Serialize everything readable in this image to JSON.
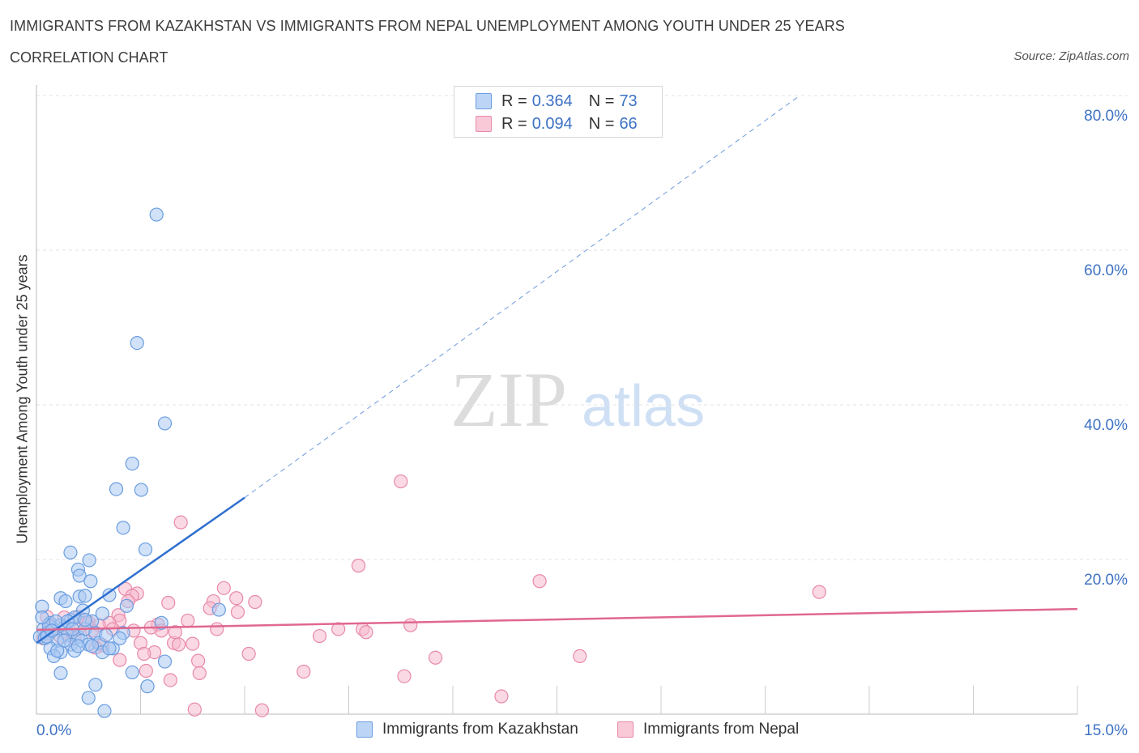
{
  "header": {
    "title": "IMMIGRANTS FROM KAZAKHSTAN VS IMMIGRANTS FROM NEPAL UNEMPLOYMENT AMONG YOUTH UNDER 25 YEARS",
    "subtitle": "CORRELATION CHART",
    "source": "Source: ZipAtlas.com"
  },
  "watermark": {
    "zip": "ZIP",
    "atlas": "atlas"
  },
  "legend": {
    "r_label": "R =",
    "n_label": "N =",
    "kazakhstan": {
      "r": "0.364",
      "n": "73"
    },
    "nepal": {
      "r": "0.094",
      "n": "66"
    }
  },
  "colors": {
    "kazakhstan_fill": "#a9c8f3",
    "kazakhstan_stroke": "#6a9de0",
    "kazakhstan_line": "#2e6fcf",
    "nepal_fill": "#f6b9cd",
    "nepal_stroke": "#e889a8",
    "nepal_line": "#e0688f",
    "axis_label": "#3d72c4",
    "grid": "#e3e3e3"
  },
  "chart_data": {
    "type": "scatter",
    "title": "IMMIGRANTS FROM KAZAKHSTAN VS IMMIGRANTS FROM NEPAL UNEMPLOYMENT AMONG YOUTH UNDER 25 YEARS",
    "xlabel": "",
    "ylabel": "Unemployment Among Youth under 25 years",
    "xlim": [
      0,
      15
    ],
    "ylim": [
      0,
      80
    ],
    "x_tick_labels": [
      "0.0%",
      "15.0%"
    ],
    "y_ticks": [
      20,
      40,
      60,
      80
    ],
    "y_tick_labels": [
      "20.0%",
      "40.0%",
      "60.0%",
      "80.0%"
    ],
    "grid": true,
    "legend": [
      "Immigrants from Kazakhstan",
      "Immigrants from Nepal"
    ],
    "series": [
      {
        "name": "Immigrants from Kazakhstan",
        "points": [
          [
            1.73,
            64.6
          ],
          [
            1.45,
            48.0
          ],
          [
            1.85,
            37.6
          ],
          [
            1.38,
            32.4
          ],
          [
            1.15,
            29.1
          ],
          [
            1.51,
            29.0
          ],
          [
            1.25,
            24.1
          ],
          [
            1.57,
            21.3
          ],
          [
            0.49,
            20.9
          ],
          [
            0.76,
            19.9
          ],
          [
            0.6,
            18.7
          ],
          [
            0.62,
            17.9
          ],
          [
            0.78,
            17.2
          ],
          [
            0.35,
            15.0
          ],
          [
            0.62,
            15.2
          ],
          [
            0.7,
            15.3
          ],
          [
            1.05,
            15.4
          ],
          [
            0.42,
            14.6
          ],
          [
            0.08,
            13.9
          ],
          [
            0.67,
            13.4
          ],
          [
            1.3,
            14.0
          ],
          [
            0.95,
            13.0
          ],
          [
            0.5,
            12.2
          ],
          [
            0.2,
            11.8
          ],
          [
            0.35,
            11.5
          ],
          [
            0.55,
            12.5
          ],
          [
            0.8,
            12.0
          ],
          [
            0.1,
            11.0
          ],
          [
            0.15,
            10.5
          ],
          [
            0.25,
            10.9
          ],
          [
            0.4,
            11.2
          ],
          [
            0.45,
            10.2
          ],
          [
            0.6,
            10.0
          ],
          [
            0.7,
            11.0
          ],
          [
            0.85,
            10.5
          ],
          [
            0.3,
            9.5
          ],
          [
            0.05,
            10.0
          ],
          [
            0.12,
            9.8
          ],
          [
            0.18,
            11.5
          ],
          [
            0.28,
            12.0
          ],
          [
            0.5,
            9.0
          ],
          [
            0.65,
            9.5
          ],
          [
            0.75,
            9.0
          ],
          [
            0.9,
            9.2
          ],
          [
            1.0,
            10.2
          ],
          [
            1.1,
            8.5
          ],
          [
            0.2,
            8.5
          ],
          [
            0.35,
            8.0
          ],
          [
            0.55,
            8.2
          ],
          [
            0.95,
            8.0
          ],
          [
            1.25,
            10.5
          ],
          [
            1.2,
            9.8
          ],
          [
            1.05,
            8.5
          ],
          [
            0.8,
            8.8
          ],
          [
            0.6,
            8.8
          ],
          [
            0.4,
            9.5
          ],
          [
            0.25,
            7.5
          ],
          [
            0.3,
            8.2
          ],
          [
            0.15,
            10.0
          ],
          [
            0.45,
            12.0
          ],
          [
            1.8,
            11.8
          ],
          [
            1.85,
            6.8
          ],
          [
            2.63,
            13.5
          ],
          [
            0.35,
            5.3
          ],
          [
            0.85,
            3.8
          ],
          [
            1.38,
            5.4
          ],
          [
            1.6,
            3.6
          ],
          [
            0.75,
            2.1
          ],
          [
            0.98,
            0.4
          ],
          [
            0.08,
            12.5
          ],
          [
            0.22,
            10.8
          ],
          [
            0.52,
            11.0
          ],
          [
            0.7,
            12.2
          ]
        ]
      },
      {
        "name": "Immigrants from Nepal",
        "points": [
          [
            5.25,
            30.1
          ],
          [
            2.08,
            24.8
          ],
          [
            4.64,
            19.2
          ],
          [
            7.25,
            17.2
          ],
          [
            11.28,
            15.8
          ],
          [
            1.28,
            16.2
          ],
          [
            2.7,
            16.3
          ],
          [
            1.45,
            15.6
          ],
          [
            1.38,
            15.3
          ],
          [
            1.32,
            14.6
          ],
          [
            1.9,
            14.4
          ],
          [
            3.15,
            14.5
          ],
          [
            2.55,
            14.6
          ],
          [
            2.88,
            15.0
          ],
          [
            2.5,
            13.7
          ],
          [
            2.9,
            13.2
          ],
          [
            1.18,
            12.8
          ],
          [
            1.2,
            12.1
          ],
          [
            1.05,
            11.8
          ],
          [
            0.9,
            11.5
          ],
          [
            0.75,
            11.9
          ],
          [
            0.6,
            11.0
          ],
          [
            0.8,
            10.8
          ],
          [
            1.75,
            11.6
          ],
          [
            2.18,
            12.1
          ],
          [
            2.6,
            11.0
          ],
          [
            1.8,
            10.8
          ],
          [
            1.1,
            11.0
          ],
          [
            4.35,
            11.0
          ],
          [
            4.7,
            11.0
          ],
          [
            4.75,
            10.6
          ],
          [
            5.39,
            11.5
          ],
          [
            4.08,
            10.1
          ],
          [
            0.45,
            10.4
          ],
          [
            0.2,
            11.5
          ],
          [
            0.15,
            12.6
          ],
          [
            0.35,
            10.0
          ],
          [
            0.55,
            9.8
          ],
          [
            1.5,
            9.2
          ],
          [
            1.98,
            9.2
          ],
          [
            2.05,
            9.0
          ],
          [
            2.25,
            9.1
          ],
          [
            1.7,
            8.0
          ],
          [
            1.55,
            7.8
          ],
          [
            0.95,
            8.9
          ],
          [
            0.85,
            8.6
          ],
          [
            1.2,
            7.0
          ],
          [
            3.06,
            7.8
          ],
          [
            2.33,
            6.9
          ],
          [
            1.58,
            5.6
          ],
          [
            2.35,
            5.3
          ],
          [
            3.85,
            5.5
          ],
          [
            5.3,
            4.9
          ],
          [
            5.75,
            7.3
          ],
          [
            7.83,
            7.5
          ],
          [
            1.93,
            4.4
          ],
          [
            6.7,
            2.3
          ],
          [
            2.28,
            0.6
          ],
          [
            3.25,
            0.5
          ],
          [
            0.72,
            11.8
          ],
          [
            0.4,
            12.5
          ],
          [
            0.1,
            9.8
          ],
          [
            0.6,
            12.6
          ],
          [
            1.4,
            10.8
          ],
          [
            2.0,
            10.6
          ],
          [
            1.65,
            11.2
          ]
        ]
      }
    ],
    "trendlines": [
      {
        "series": "Immigrants from Kazakhstan",
        "solid": [
          [
            0.0,
            9.2
          ],
          [
            3.0,
            28.0
          ]
        ],
        "dashed": [
          [
            3.0,
            28.0
          ],
          [
            11.0,
            80.0
          ]
        ]
      },
      {
        "series": "Immigrants from Nepal",
        "solid": [
          [
            0.0,
            10.9
          ],
          [
            15.0,
            13.6
          ]
        ]
      }
    ]
  }
}
